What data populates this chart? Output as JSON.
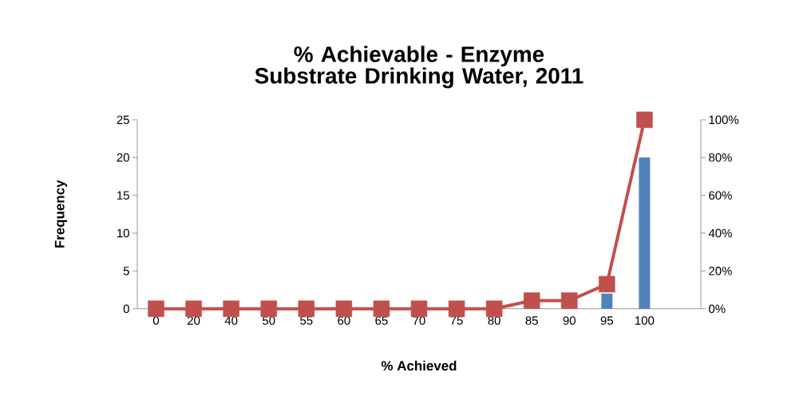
{
  "chart_data": {
    "type": "bar",
    "title": "% Achievable - Enzyme Substrate Drinking Water, 2011",
    "xlabel": "% Achieved",
    "ylabel": "Frequency",
    "categories": [
      "0",
      "20",
      "40",
      "50",
      "55",
      "60",
      "65",
      "70",
      "75",
      "80",
      "85",
      "90",
      "95",
      "100",
      null
    ],
    "series": [
      {
        "color": "#4f81bd",
        "values": [
          0,
          0,
          0,
          0,
          0,
          0,
          0,
          0,
          0,
          0,
          null,
          0,
          2,
          20,
          null
        ]
      },
      {
        "type": "line",
        "axis": "y2",
        "color": "#c0504d",
        "values": [
          0,
          0,
          0,
          0,
          0,
          0,
          0,
          0,
          0,
          0,
          4.3,
          4.3,
          13,
          100,
          null
        ]
      }
    ],
    "ylim": [
      0,
      25
    ],
    "yticks": [
      0,
      5,
      10,
      15,
      20,
      25
    ],
    "y2lim": [
      0,
      100
    ],
    "y2ticks": [
      {
        "value": 0,
        "label": "0%"
      },
      {
        "value": 20,
        "label": "20%"
      },
      {
        "value": 40,
        "label": "40%"
      },
      {
        "value": 60,
        "label": "60%"
      },
      {
        "value": 80,
        "label": "80%"
      },
      {
        "value": 100,
        "label": "100%"
      }
    ],
    "marker": "square",
    "line_style": "solid",
    "grid": false
  }
}
